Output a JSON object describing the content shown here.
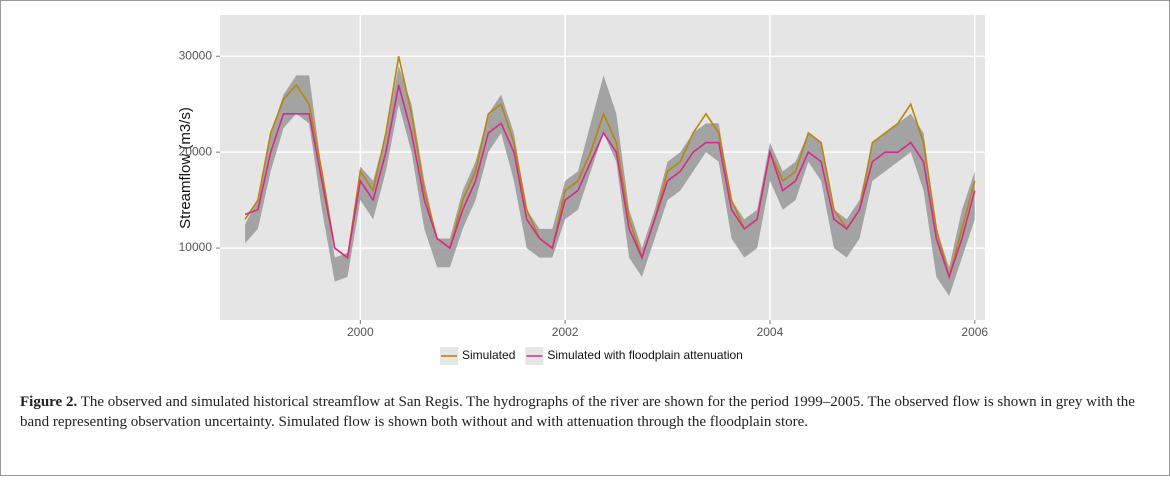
{
  "chart_data": {
    "type": "line",
    "y_label": "Streamflow (m3/s)",
    "x": [
      1998.875,
      1999.0,
      1999.125,
      1999.25,
      1999.375,
      1999.5,
      1999.625,
      1999.75,
      1999.875,
      2000.0,
      2000.125,
      2000.25,
      2000.375,
      2000.5,
      2000.625,
      2000.75,
      2000.875,
      2001.0,
      2001.125,
      2001.25,
      2001.375,
      2001.5,
      2001.625,
      2001.75,
      2001.875,
      2002.0,
      2002.125,
      2002.25,
      2002.375,
      2002.5,
      2002.625,
      2002.75,
      2002.875,
      2003.0,
      2003.125,
      2003.25,
      2003.375,
      2003.5,
      2003.625,
      2003.75,
      2003.875,
      2004.0,
      2004.125,
      2004.25,
      2004.375,
      2004.5,
      2004.625,
      2004.75,
      2004.875,
      2005.0,
      2005.125,
      2005.25,
      2005.375,
      2005.5,
      2005.625,
      2005.75,
      2005.875,
      2006.0
    ],
    "band": {
      "color": "#8c8c8c",
      "lower": [
        10500,
        12000,
        18000,
        22500,
        24000,
        23000,
        14000,
        6500,
        7000,
        15000,
        13000,
        18000,
        25000,
        20000,
        12000,
        8000,
        8000,
        12000,
        15000,
        20000,
        22000,
        17000,
        10000,
        9000,
        9000,
        13000,
        14000,
        18000,
        22000,
        19000,
        9000,
        7000,
        11000,
        15000,
        16000,
        18000,
        20000,
        19000,
        11000,
        9000,
        10000,
        17000,
        14000,
        15000,
        19000,
        17000,
        10000,
        9000,
        11000,
        17000,
        18000,
        19000,
        20000,
        16000,
        7000,
        5000,
        9000,
        13000
      ],
      "upper": [
        12500,
        15000,
        22000,
        26000,
        28000,
        28000,
        18000,
        9000,
        9500,
        18500,
        17000,
        22000,
        29000,
        25000,
        17000,
        11000,
        11000,
        16000,
        19000,
        24000,
        26000,
        22000,
        14000,
        12000,
        12000,
        17000,
        18000,
        23000,
        28000,
        24000,
        14000,
        10000,
        14000,
        19000,
        20000,
        22000,
        23000,
        23000,
        15000,
        13000,
        14000,
        21000,
        18000,
        19000,
        22000,
        21000,
        14000,
        13000,
        15000,
        21000,
        22000,
        23000,
        24000,
        22000,
        12000,
        8000,
        14000,
        18000
      ]
    },
    "series": [
      {
        "name": "Simulated",
        "color": "#b8860b",
        "values": [
          13000,
          15000,
          22000,
          25500,
          27000,
          25000,
          18000,
          10000,
          9000,
          18000,
          16000,
          22000,
          30000,
          24000,
          16000,
          11000,
          10000,
          15000,
          18000,
          24000,
          25000,
          21000,
          14000,
          11000,
          10000,
          16000,
          17000,
          20000,
          24000,
          21000,
          13000,
          9000,
          13000,
          18000,
          19000,
          22000,
          24000,
          22000,
          15000,
          12000,
          13000,
          20000,
          17000,
          18000,
          22000,
          21000,
          14000,
          12000,
          14000,
          21000,
          22000,
          23000,
          25000,
          21000,
          12000,
          7000,
          12000,
          17000
        ]
      },
      {
        "name": "Simulated with floodplain attenuation",
        "color": "#d62b8a",
        "values": [
          13500,
          14000,
          20000,
          24000,
          24000,
          24000,
          17000,
          10000,
          9000,
          17000,
          15000,
          20000,
          27000,
          22000,
          15000,
          11000,
          10000,
          14000,
          17000,
          22000,
          23000,
          20000,
          13000,
          11000,
          10000,
          15000,
          16000,
          19000,
          22000,
          20000,
          12000,
          9000,
          13000,
          17000,
          18000,
          20000,
          21000,
          21000,
          14000,
          12000,
          13000,
          20000,
          16000,
          17000,
          20000,
          19000,
          13000,
          12000,
          14000,
          19000,
          20000,
          20000,
          21000,
          19000,
          11000,
          7000,
          11000,
          16000
        ]
      }
    ],
    "xlim": [
      1998.63,
      2006.1
    ],
    "xticks": [
      2000,
      2002,
      2004,
      2006
    ],
    "ylim": [
      2500,
      34300
    ],
    "yticks": [
      10000,
      20000,
      30000
    ],
    "grid": true,
    "legend": "bottom"
  },
  "caption": {
    "label": "Figure 2.",
    "text": "The observed and simulated historical streamflow at San Regis. The hydrographs of the river are shown for the period 1999–2005. The observed flow is shown in grey with the band representing observation uncertainty. Simulated flow is shown both without and with attenuation through the floodplain store."
  }
}
